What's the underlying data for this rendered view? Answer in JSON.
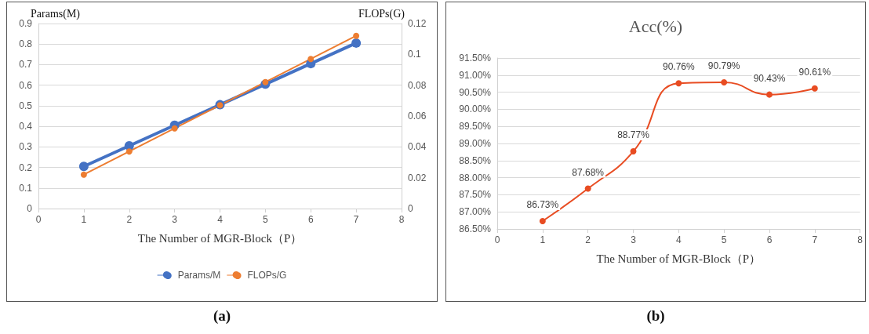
{
  "chart_data": [
    {
      "type": "line",
      "xlabel": "The Number of MGR-Block（P）",
      "ylabel": "Params(M)",
      "y2label": "FLOPs(G)",
      "annotations": [
        "(a)"
      ],
      "x": [
        1,
        2,
        3,
        4,
        5,
        6,
        7
      ],
      "series": [
        {
          "name": "Params/M",
          "color": "#4472c4",
          "values": [
            0.205,
            0.305,
            0.405,
            0.505,
            0.605,
            0.705,
            0.805
          ]
        },
        {
          "name": "FLOPs/G",
          "color": "#ed7d31",
          "axis": "y2",
          "values": [
            0.022,
            0.037,
            0.052,
            0.067,
            0.082,
            0.097,
            0.112
          ]
        }
      ],
      "xlim": [
        0,
        8
      ],
      "xticks": [
        0,
        1,
        2,
        3,
        4,
        5,
        6,
        7,
        8
      ],
      "ylim": [
        0,
        0.9
      ],
      "yticks": [
        0,
        0.1,
        0.2,
        0.3,
        0.4,
        0.5,
        0.6,
        0.7,
        0.8,
        0.9
      ],
      "y2lim": [
        0,
        0.12
      ],
      "y2ticks": [
        0,
        0.02,
        0.04,
        0.06,
        0.08,
        0.1,
        0.12
      ],
      "grid": "y",
      "legend": "bottom",
      "marker": "circle",
      "line_style": "solid"
    },
    {
      "type": "line",
      "title": "Acc(%)",
      "xlabel": "The Number of MGR-Block（P）",
      "annotations": [
        "(b)"
      ],
      "x": [
        1,
        2,
        3,
        4,
        5,
        6,
        7
      ],
      "series": [
        {
          "color": "#e84c22",
          "values": [
            86.73,
            87.68,
            88.77,
            90.76,
            90.79,
            90.43,
            90.61
          ],
          "value_labels": [
            "86.73%",
            "87.68%",
            "88.77%",
            "90.76%",
            "90.79%",
            "90.43%",
            "90.61%"
          ]
        }
      ],
      "xlim": [
        0,
        8
      ],
      "xticks": [
        0,
        1,
        2,
        3,
        4,
        5,
        6,
        7,
        8
      ],
      "ylim": [
        86.5,
        91.5
      ],
      "yticks": [
        {
          "value": 86.5,
          "label": "86.50%"
        },
        {
          "value": 87,
          "label": "87.00%"
        },
        {
          "value": 87.5,
          "label": "87.50%"
        },
        {
          "value": 88,
          "label": "88.00%"
        },
        {
          "value": 88.5,
          "label": "88.50%"
        },
        {
          "value": 89,
          "label": "89.00%"
        },
        {
          "value": 89.5,
          "label": "89.50%"
        },
        {
          "value": 90,
          "label": "90.00%"
        },
        {
          "value": 90.5,
          "label": "90.50%"
        },
        {
          "value": 91,
          "label": "91.00%"
        },
        {
          "value": 91.5,
          "label": "91.50%"
        }
      ],
      "grid": "y",
      "legend": false,
      "marker": "circle",
      "line_style": "solid"
    }
  ]
}
